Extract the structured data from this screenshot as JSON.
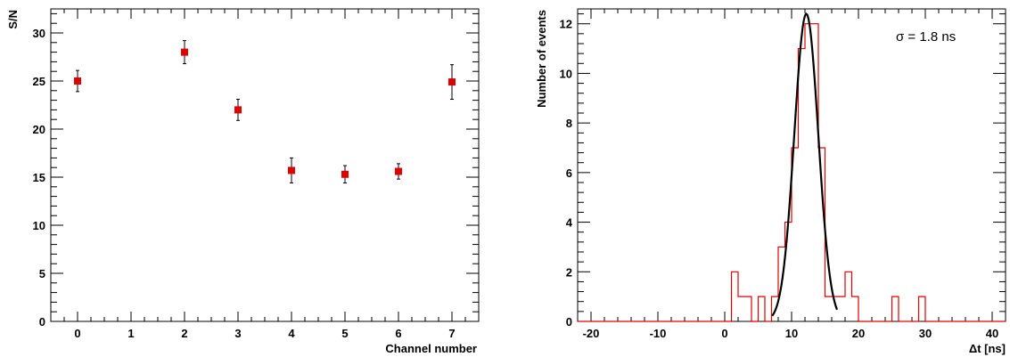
{
  "chart_data": [
    {
      "type": "scatter",
      "title": "",
      "xlabel": "Channel number",
      "ylabel": "S/N",
      "xlim": [
        -0.5,
        7.5
      ],
      "ylim": [
        0,
        32.5
      ],
      "xticks": [
        0,
        1,
        2,
        3,
        4,
        5,
        6,
        7
      ],
      "yticks": [
        0,
        5,
        10,
        15,
        20,
        25,
        30
      ],
      "grid": false,
      "marker_color": "#e00000",
      "points": [
        {
          "x": 0,
          "y": 25.0,
          "err": 1.1
        },
        {
          "x": 2,
          "y": 28.0,
          "err": 1.2
        },
        {
          "x": 3,
          "y": 22.0,
          "err": 1.1
        },
        {
          "x": 4,
          "y": 15.7,
          "err": 1.3
        },
        {
          "x": 5,
          "y": 15.3,
          "err": 0.9
        },
        {
          "x": 6,
          "y": 15.6,
          "err": 0.8
        },
        {
          "x": 7,
          "y": 24.9,
          "err": 1.8
        }
      ]
    },
    {
      "type": "histogram",
      "title": "",
      "xlabel": "Δt [ns]",
      "ylabel": "Number of events",
      "xlim": [
        -22,
        42
      ],
      "ylim": [
        0,
        12.6
      ],
      "xticks": [
        -20,
        -10,
        0,
        10,
        20,
        30,
        40
      ],
      "xtick_labels": [
        "-20",
        "-10",
        "0",
        "10",
        "20",
        "30",
        "40"
      ],
      "yticks": [
        0,
        2,
        4,
        6,
        8,
        10,
        12
      ],
      "grid": false,
      "bin_width": 1,
      "hist_color": "#e00000",
      "fit_color": "#000000",
      "bins": [
        {
          "x": 1,
          "count": 2
        },
        {
          "x": 2,
          "count": 1
        },
        {
          "x": 3,
          "count": 1
        },
        {
          "x": 4,
          "count": 0
        },
        {
          "x": 5,
          "count": 1
        },
        {
          "x": 6,
          "count": 0
        },
        {
          "x": 7,
          "count": 1
        },
        {
          "x": 8,
          "count": 3
        },
        {
          "x": 9,
          "count": 4
        },
        {
          "x": 10,
          "count": 7
        },
        {
          "x": 11,
          "count": 11
        },
        {
          "x": 12,
          "count": 12
        },
        {
          "x": 13,
          "count": 12
        },
        {
          "x": 14,
          "count": 7
        },
        {
          "x": 15,
          "count": 1
        },
        {
          "x": 16,
          "count": 1
        },
        {
          "x": 17,
          "count": 1
        },
        {
          "x": 18,
          "count": 2
        },
        {
          "x": 19,
          "count": 1
        },
        {
          "x": 20,
          "count": 0
        },
        {
          "x": 21,
          "count": 0
        },
        {
          "x": 22,
          "count": 0
        },
        {
          "x": 23,
          "count": 0
        },
        {
          "x": 24,
          "count": 0
        },
        {
          "x": 25,
          "count": 1
        },
        {
          "x": 26,
          "count": 0
        },
        {
          "x": 27,
          "count": 0
        },
        {
          "x": 28,
          "count": 0
        },
        {
          "x": 29,
          "count": 1
        }
      ],
      "fit": {
        "function": "gaussian",
        "mean": 12.2,
        "sigma": 1.8,
        "amplitude": 12.4,
        "range": [
          7.1,
          16.8
        ]
      },
      "annotation": "σ = 1.8 ns"
    }
  ]
}
